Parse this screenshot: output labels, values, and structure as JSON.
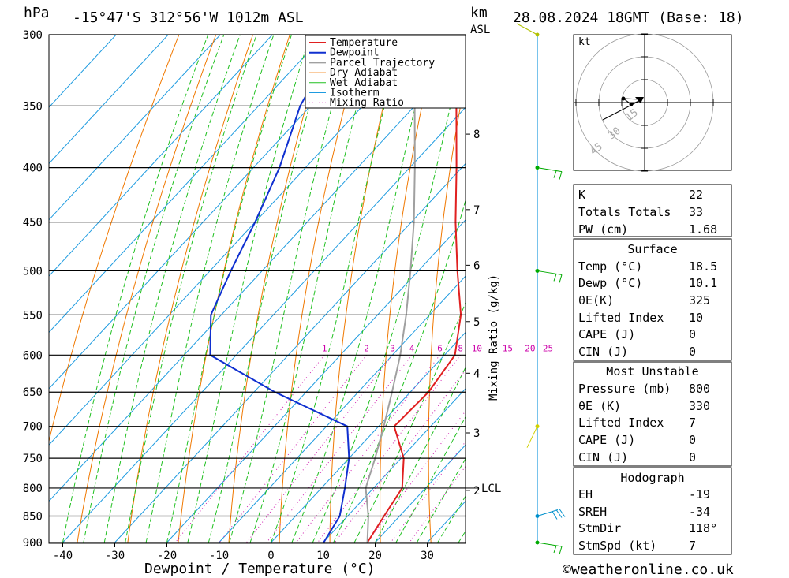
{
  "header": {
    "p_unit": "hPa",
    "location": "-15°47'S 312°56'W 1012m ASL",
    "km_unit": "km",
    "asl": "ASL",
    "datetime": "28.08.2024 18GMT (Base: 18)"
  },
  "chart_data": {
    "type": "line",
    "xlabel": "Dewpoint / Temperature (°C)",
    "ylabel": "hPa",
    "mixing_label": "Mixing Ratio (g/kg)",
    "x_ticks": [
      -40,
      -30,
      -20,
      -10,
      0,
      10,
      20,
      30
    ],
    "p_levels": [
      300,
      350,
      400,
      450,
      500,
      550,
      600,
      650,
      700,
      750,
      800,
      850,
      900
    ],
    "km_ticks": [
      {
        "km": "8",
        "p": 372
      },
      {
        "km": "7",
        "p": 438
      },
      {
        "km": "6",
        "p": 494
      },
      {
        "km": "5",
        "p": 558
      },
      {
        "km": "4",
        "p": 624
      },
      {
        "km": "3",
        "p": 710
      },
      {
        "km": "2",
        "p": 804
      }
    ],
    "lcl": {
      "label": "LCL",
      "p": 800
    },
    "mixing_ratios": [
      "1",
      "2",
      "3",
      "4",
      "6",
      "8",
      "10",
      "15",
      "20",
      "25"
    ],
    "legend": [
      "Temperature",
      "Dewpoint",
      "Parcel Trajectory",
      "Dry Adiabat",
      "Wet Adiabat",
      "Isotherm",
      "Mixing Ratio"
    ],
    "series": [
      {
        "name": "Temperature",
        "color": "#e02020",
        "points": [
          [
            900,
            18.5
          ],
          [
            850,
            17
          ],
          [
            800,
            15.5
          ],
          [
            750,
            10.5
          ],
          [
            700,
            3
          ],
          [
            650,
            3.5
          ],
          [
            600,
            2
          ],
          [
            550,
            -4
          ],
          [
            500,
            -12.5
          ],
          [
            450,
            -21.5
          ],
          [
            400,
            -31
          ],
          [
            350,
            -42
          ],
          [
            300,
            -52
          ]
        ]
      },
      {
        "name": "Dewpoint",
        "color": "#1030d0",
        "points": [
          [
            900,
            10.1
          ],
          [
            850,
            8.5
          ],
          [
            800,
            4.5
          ],
          [
            750,
            0
          ],
          [
            700,
            -6
          ],
          [
            650,
            -26
          ],
          [
            600,
            -45
          ],
          [
            550,
            -52
          ],
          [
            500,
            -56
          ],
          [
            450,
            -60
          ],
          [
            400,
            -65
          ],
          [
            350,
            -72
          ],
          [
            300,
            -77
          ]
        ]
      },
      {
        "name": "Parcel Trajectory",
        "color": "#a0a0a0",
        "points": [
          [
            900,
            18.5
          ],
          [
            850,
            14
          ],
          [
            800,
            8.5
          ],
          [
            750,
            5
          ],
          [
            700,
            1
          ],
          [
            650,
            -3.5
          ],
          [
            600,
            -8.5
          ],
          [
            550,
            -14.5
          ],
          [
            500,
            -21.5
          ],
          [
            450,
            -29.5
          ],
          [
            400,
            -39
          ],
          [
            350,
            -50
          ],
          [
            300,
            -63
          ]
        ]
      }
    ],
    "winds": [
      {
        "p": 300,
        "color": "#b0c000"
      },
      {
        "p": 400,
        "color": "#00aa00"
      },
      {
        "p": 500,
        "color": "#00aa00"
      },
      {
        "p": 700,
        "color": "#d0d000"
      },
      {
        "p": 850,
        "color": "#0090cc"
      },
      {
        "p": 900,
        "color": "#00aa00"
      }
    ],
    "hodograph": {
      "unit": "kt",
      "rings": [
        "15",
        "30",
        "45"
      ]
    }
  },
  "indices": [
    {
      "label": "K",
      "value": "22"
    },
    {
      "label": "Totals Totals",
      "value": "33"
    },
    {
      "label": "PW (cm)",
      "value": "1.68"
    }
  ],
  "surface": {
    "title": "Surface",
    "rows": [
      {
        "label": "Temp (°C)",
        "value": "18.5"
      },
      {
        "label": "Dewp (°C)",
        "value": "10.1"
      },
      {
        "label": "θE(K)",
        "value": "325"
      },
      {
        "label": "Lifted Index",
        "value": "10"
      },
      {
        "label": "CAPE (J)",
        "value": "0"
      },
      {
        "label": "CIN (J)",
        "value": "0"
      }
    ]
  },
  "most_unstable": {
    "title": "Most Unstable",
    "rows": [
      {
        "label": "Pressure (mb)",
        "value": "800"
      },
      {
        "label": "θE (K)",
        "value": "330"
      },
      {
        "label": "Lifted Index",
        "value": "7"
      },
      {
        "label": "CAPE (J)",
        "value": "0"
      },
      {
        "label": "CIN (J)",
        "value": "0"
      }
    ]
  },
  "hodograph_table": {
    "title": "Hodograph",
    "rows": [
      {
        "label": "EH",
        "value": "-19"
      },
      {
        "label": "SREH",
        "value": "-34"
      },
      {
        "label": "StmDir",
        "value": "118°"
      },
      {
        "label": "StmSpd (kt)",
        "value": "7"
      }
    ]
  },
  "footer": "©weatheronline.co.uk"
}
